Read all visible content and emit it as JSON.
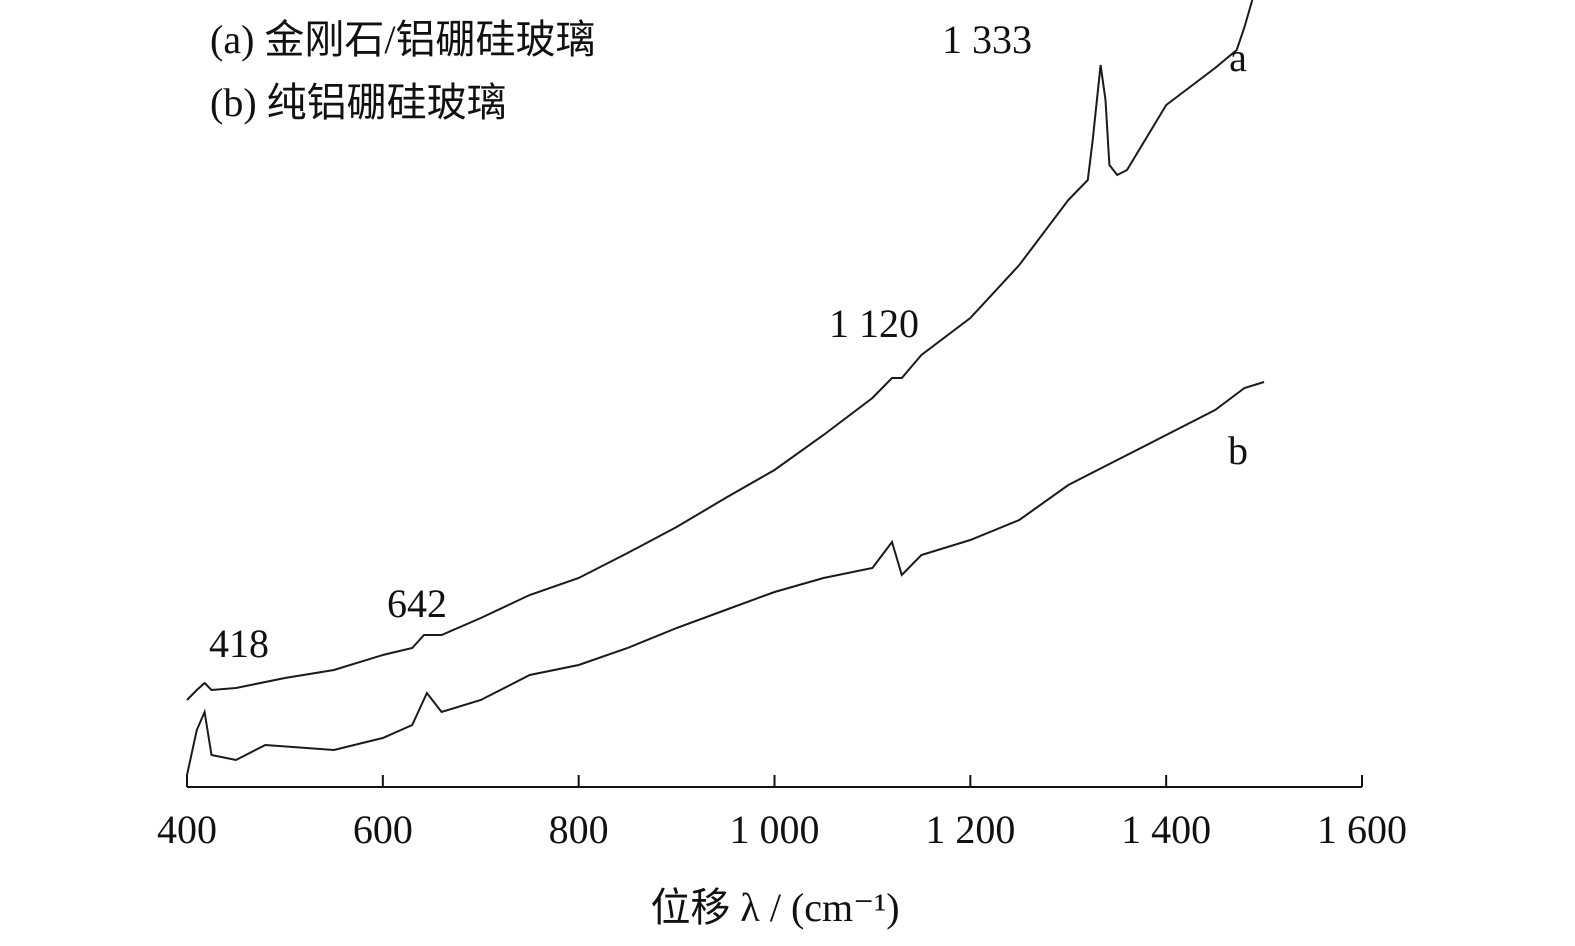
{
  "chart_data": {
    "type": "line",
    "xlabel": "位移 λ / (cm⁻¹)",
    "legend_entries": [
      "(a) 金刚石/铝硼硅玻璃",
      "(b) 纯铝硼硅玻璃"
    ],
    "annotations": [
      "1 333",
      "1 120",
      "642",
      "418"
    ],
    "series": [
      {
        "name": "a",
        "color": "#1a1a1a",
        "x": [
          400,
          410,
          418,
          425,
          450,
          500,
          550,
          600,
          630,
          642,
          660,
          700,
          750,
          800,
          850,
          900,
          950,
          1000,
          1050,
          1100,
          1120,
          1130,
          1150,
          1200,
          1250,
          1300,
          1320,
          1325,
          1333,
          1338,
          1342,
          1350,
          1360,
          1400,
          1450,
          1472,
          1480,
          1488
        ],
        "values": [
          87,
          97,
          104,
          97,
          99,
          109,
          117,
          132,
          139,
          152,
          152,
          169,
          192,
          209,
          234,
          260,
          289,
          317,
          352,
          389,
          409,
          409,
          432,
          469,
          522,
          587,
          607,
          647,
          722,
          687,
          622,
          612,
          617,
          682,
          719,
          737,
          760,
          787
        ]
      },
      {
        "name": "b",
        "color": "#1a1a1a",
        "x": [
          400,
          410,
          418,
          425,
          450,
          480,
          550,
          600,
          630,
          645,
          660,
          700,
          750,
          800,
          850,
          900,
          950,
          1000,
          1050,
          1100,
          1120,
          1130,
          1150,
          1200,
          1250,
          1300,
          1350,
          1400,
          1450,
          1480,
          1500
        ],
        "values": [
          12,
          57,
          75,
          32,
          27,
          42,
          37,
          49,
          62,
          94,
          75,
          87,
          112,
          122,
          139,
          159,
          177,
          195,
          209,
          219,
          245,
          212,
          232,
          247,
          267,
          302,
          327,
          352,
          377,
          399,
          405
        ]
      }
    ],
    "xlim": [
      400,
      1600
    ],
    "xticks": [
      400,
      600,
      800,
      {
        "value": 1000,
        "label": "1 000"
      },
      {
        "value": 1200,
        "label": "1 200"
      },
      {
        "value": 1400,
        "label": "1 400"
      },
      {
        "value": 1600,
        "label": "1 600"
      }
    ],
    "ylim": [
      0,
      800
    ]
  }
}
